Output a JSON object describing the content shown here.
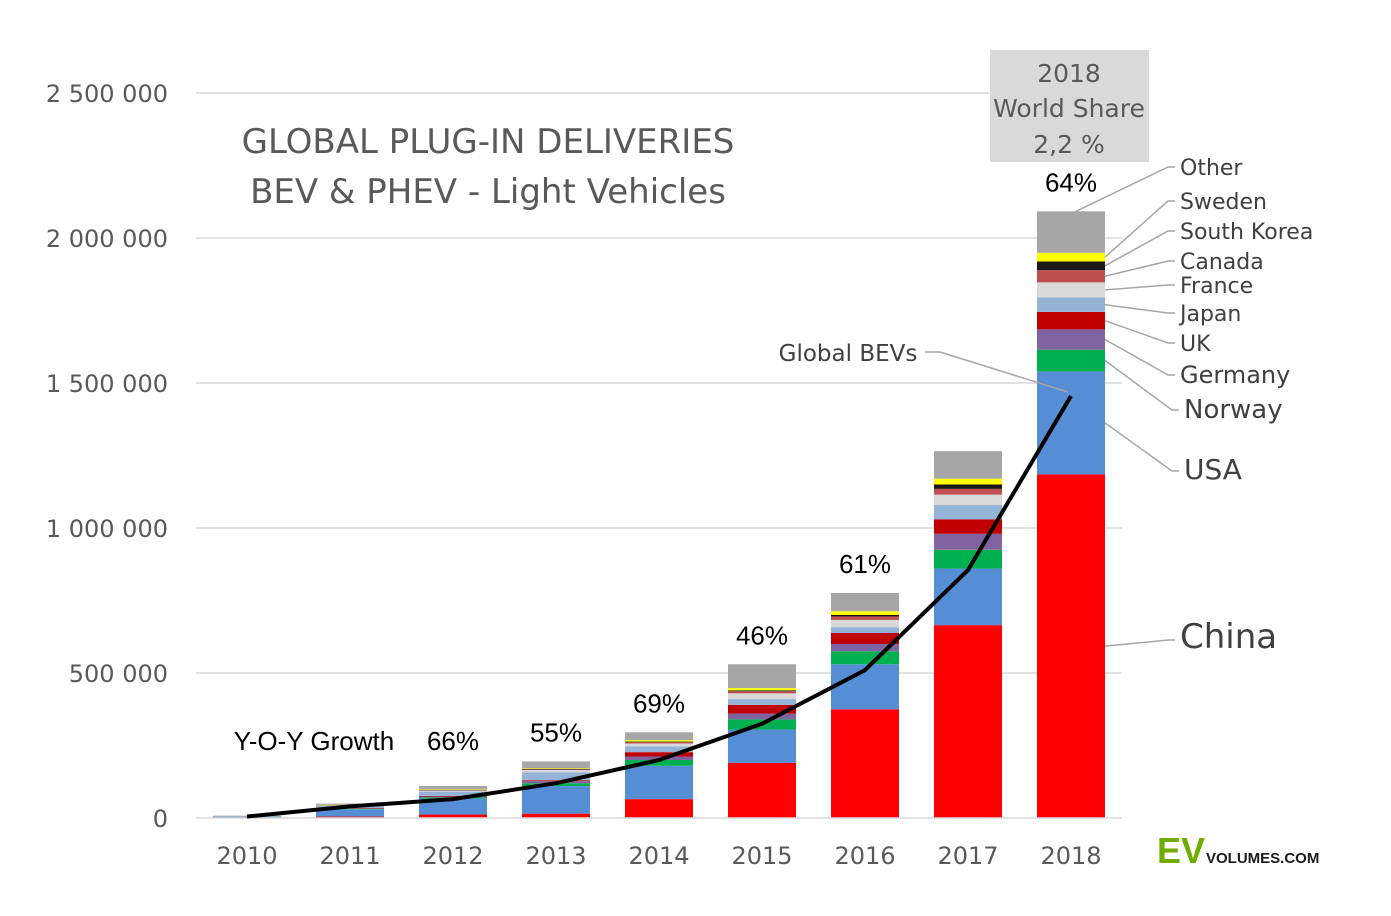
{
  "chart_data": {
    "type": "bar",
    "stacked": true,
    "title_line1": "GLOBAL PLUG-IN DELIVERIES",
    "title_line2": "BEV & PHEV - Light Vehicles",
    "categories": [
      "2010",
      "2011",
      "2012",
      "2013",
      "2014",
      "2015",
      "2016",
      "2017",
      "2018"
    ],
    "ylim": [
      0,
      2500000
    ],
    "yticks": [
      {
        "value": 0,
        "label": "0"
      },
      {
        "value": 500000,
        "label": "500 000"
      },
      {
        "value": 1000000,
        "label": "1 000 000"
      },
      {
        "value": 1500000,
        "label": "1 500 000"
      },
      {
        "value": 2000000,
        "label": "2 000 000"
      },
      {
        "value": 2500000,
        "label": "2 500 000"
      }
    ],
    "series": [
      {
        "name": "China",
        "color": "#ff0000",
        "values": [
          1000,
          5000,
          12000,
          15000,
          65000,
          190000,
          375000,
          665000,
          1185000
        ]
      },
      {
        "name": "USA",
        "color": "#558ed5",
        "values": [
          3000,
          25000,
          55000,
          95000,
          115000,
          115000,
          155000,
          195000,
          355000
        ]
      },
      {
        "name": "Norway",
        "color": "#00b050",
        "values": [
          0,
          2000,
          4000,
          10000,
          20000,
          35000,
          45000,
          65000,
          75000
        ]
      },
      {
        "name": "Germany",
        "color": "#8064a2",
        "values": [
          0,
          2000,
          3000,
          7000,
          12000,
          20000,
          25000,
          55000,
          70000
        ]
      },
      {
        "name": "UK",
        "color": "#c00000",
        "values": [
          0,
          1000,
          2000,
          3000,
          15000,
          30000,
          38000,
          50000,
          60000
        ]
      },
      {
        "name": "Japan",
        "color": "#95b3d7",
        "values": [
          1000,
          8000,
          15000,
          28000,
          20000,
          20000,
          20000,
          50000,
          50000
        ]
      },
      {
        "name": "France",
        "color": "#d9d9d9",
        "values": [
          0,
          2000,
          5000,
          8000,
          10000,
          20000,
          25000,
          35000,
          52000
        ]
      },
      {
        "name": "Canada",
        "color": "#c0504d",
        "values": [
          0,
          500,
          1000,
          2000,
          5000,
          7000,
          12000,
          20000,
          42000
        ]
      },
      {
        "name": "South Korea",
        "color": "#1a1a1a",
        "values": [
          0,
          0,
          500,
          1000,
          1500,
          3000,
          5000,
          15000,
          30000
        ]
      },
      {
        "name": "Sweden",
        "color": "#ffff00",
        "values": [
          0,
          300,
          1000,
          2000,
          5000,
          8000,
          13000,
          20000,
          30000
        ]
      },
      {
        "name": "Other",
        "color": "#a6a6a6",
        "values": [
          3000,
          4000,
          12000,
          24000,
          27000,
          82000,
          63000,
          95000,
          143000
        ]
      }
    ],
    "line": {
      "name": "Global BEVs",
      "color": "#000000",
      "values": [
        5000,
        40000,
        65000,
        120000,
        200000,
        325000,
        510000,
        855000,
        1455000
      ]
    },
    "growth_labels": [
      {
        "category": "2012",
        "label": "66%"
      },
      {
        "category": "2013",
        "label": "55%"
      },
      {
        "category": "2014",
        "label": "69%"
      },
      {
        "category": "2015",
        "label": "46%"
      },
      {
        "category": "2016",
        "label": "61%"
      },
      {
        "category": "2018",
        "label": "64%"
      }
    ],
    "growth_title": "Y-O-Y Growth",
    "line_label": "Global BEVs",
    "share_box": {
      "line1": "2018",
      "line2": "World Share",
      "line3": "2,2 %"
    },
    "logo": {
      "ev": "EV",
      "rest": "VOLUMES.COM",
      "ev_color": "#70ad00"
    }
  }
}
